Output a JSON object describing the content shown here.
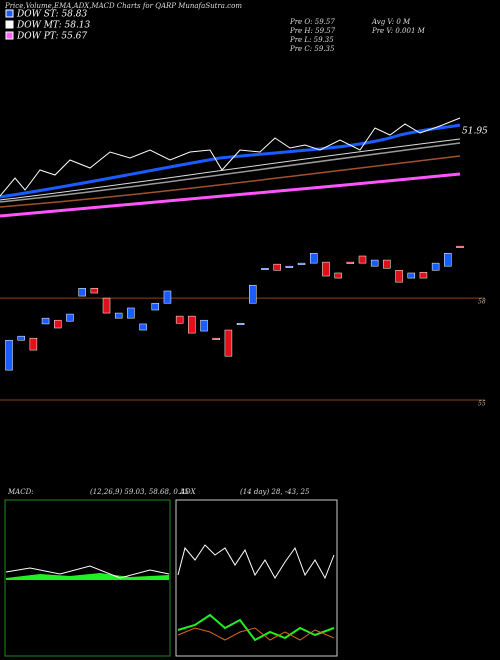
{
  "chart_data": {
    "type": "candlestick",
    "title": "Price,Volume,EMA,ADX,MACD Charts for QARP MunafaSutra.com",
    "legend": [
      "DOW ST: 58.83",
      "DOW MT: 58.13",
      "DOW PT: 55.67"
    ],
    "legend_colors": [
      "#1a5cff",
      "#ffffff",
      "#ff66ff"
    ],
    "info": [
      "Pre  O: 59.57",
      "Pre  H: 59.57",
      "Pre  L: 59.35",
      "Pre  C: 59.35",
      "Avg V: 0  M",
      "Pre  V: 0.001 M"
    ],
    "ema_label": "51.95",
    "open": [
      55.88,
      56.76,
      56.82,
      57.24,
      57.35,
      57.32,
      58.06,
      58.29,
      58.0,
      57.41,
      57.41,
      57.06,
      57.65,
      57.85,
      57.47,
      57.47,
      57.03,
      56.82,
      57.06,
      57.24,
      57.85,
      58.85,
      59.0,
      58.91,
      59.0,
      59.03,
      59.06,
      58.74,
      59.06,
      59.24,
      58.94,
      59.12,
      58.82,
      58.59,
      58.76,
      58.82,
      58.94,
      59.53
    ],
    "close": [
      56.76,
      56.88,
      56.47,
      57.41,
      57.12,
      57.53,
      58.29,
      58.15,
      57.56,
      57.56,
      57.71,
      57.24,
      57.85,
      58.21,
      57.26,
      56.97,
      57.35,
      56.79,
      56.29,
      57.26,
      58.38,
      58.88,
      58.82,
      58.94,
      59.03,
      59.32,
      58.65,
      58.59,
      59.03,
      59.03,
      59.12,
      58.88,
      58.47,
      58.74,
      58.59,
      59.03,
      59.32,
      59.5
    ],
    "up_color": "#1a5cff",
    "down_color": "#e0101a",
    "ylim": [
      54.5,
      60.3
    ],
    "yticks": [
      58,
      55
    ],
    "macd_label": "MACD:",
    "macd_values": "(12,26,9) 59.03,  58.68,  0.35",
    "adx_label": "ADX",
    "adx_values": "(14  day) 28,  -43,  25"
  }
}
